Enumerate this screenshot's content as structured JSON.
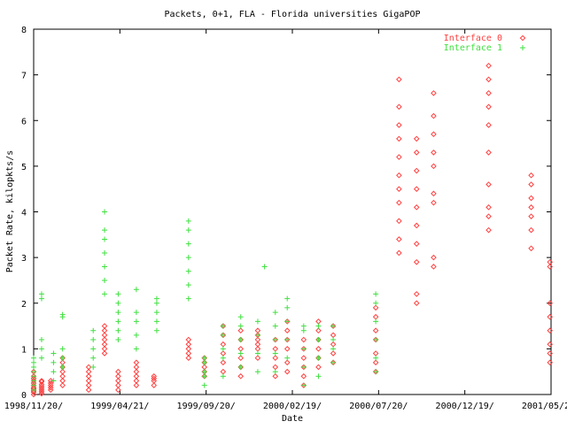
{
  "chart_data": {
    "type": "scatter",
    "title": "Packets, 0+1, FLA - Florida universities GigaPOP",
    "xlabel": "Date",
    "ylabel": "Packet Rate, kilopkts/s",
    "ylim": [
      0,
      8
    ],
    "xlim": [
      "1998-11-20",
      "2001-05-20"
    ],
    "x_ticks": [
      "1998/11/20/",
      "1999/04/21/",
      "1999/09/20/",
      "2000/02/19/",
      "2000/07/20/",
      "2000/12/19/",
      "2001/05/20/"
    ],
    "y_ticks": [
      "0",
      "1",
      "2",
      "3",
      "4",
      "5",
      "6",
      "7",
      "8"
    ],
    "grid": false,
    "legend_position": "top-right",
    "series": [
      {
        "name": "Interface 0",
        "marker": "diamond",
        "color": "#ff4040",
        "clusters": [
          {
            "date": "1998-11-20",
            "values": [
              0.0,
              0.05,
              0.08,
              0.12,
              0.15,
              0.2,
              0.25,
              0.3,
              0.35,
              0.4,
              0.5
            ]
          },
          {
            "date": "1998-12-04",
            "values": [
              0.02,
              0.06,
              0.1,
              0.14,
              0.18,
              0.22,
              0.28,
              0.3
            ]
          },
          {
            "date": "1998-12-20",
            "values": [
              0.1,
              0.15,
              0.2,
              0.25,
              0.3
            ]
          },
          {
            "date": "1999-01-10",
            "values": [
              0.2,
              0.3,
              0.4,
              0.5,
              0.6,
              0.7,
              0.8
            ]
          },
          {
            "date": "1999-02-25",
            "values": [
              0.1,
              0.2,
              0.3,
              0.4,
              0.5,
              0.6
            ]
          },
          {
            "date": "1999-03-25",
            "values": [
              0.9,
              1.0,
              1.1,
              1.2,
              1.3,
              1.4,
              1.5
            ]
          },
          {
            "date": "1999-04-18",
            "values": [
              0.1,
              0.2,
              0.3,
              0.4,
              0.5
            ]
          },
          {
            "date": "1999-05-20",
            "values": [
              0.2,
              0.3,
              0.4,
              0.5,
              0.6,
              0.7
            ]
          },
          {
            "date": "1999-06-20",
            "values": [
              0.2,
              0.3,
              0.35,
              0.4
            ]
          },
          {
            "date": "1999-08-20",
            "values": [
              0.8,
              0.9,
              1.0,
              1.1,
              1.2
            ]
          },
          {
            "date": "1999-09-17",
            "values": [
              0.4,
              0.5,
              0.6,
              0.7,
              0.8
            ]
          },
          {
            "date": "1999-10-20",
            "values": [
              0.5,
              0.7,
              0.9,
              1.1,
              1.3,
              1.5
            ]
          },
          {
            "date": "1999-11-20",
            "values": [
              0.4,
              0.6,
              0.8,
              1.0,
              1.2,
              1.4
            ]
          },
          {
            "date": "1999-12-20",
            "values": [
              0.8,
              1.0,
              1.1,
              1.2,
              1.3,
              1.4
            ]
          },
          {
            "date": "2000-01-20",
            "values": [
              0.4,
              0.6,
              0.8,
              1.0,
              1.2
            ]
          },
          {
            "date": "2000-02-10",
            "values": [
              0.5,
              0.7,
              1.0,
              1.2,
              1.4,
              1.6
            ]
          },
          {
            "date": "2000-03-10",
            "values": [
              0.2,
              0.4,
              0.6,
              0.8,
              1.0,
              1.2
            ]
          },
          {
            "date": "2000-04-05",
            "values": [
              0.6,
              0.8,
              1.0,
              1.2,
              1.4,
              1.6
            ]
          },
          {
            "date": "2000-05-01",
            "values": [
              0.7,
              0.9,
              1.1,
              1.3,
              1.5
            ]
          },
          {
            "date": "2000-07-15",
            "values": [
              0.5,
              0.7,
              0.9,
              1.2,
              1.4,
              1.7,
              1.9
            ]
          },
          {
            "date": "2000-08-25",
            "values": [
              3.1,
              3.4,
              3.8,
              4.2,
              4.5,
              4.8,
              5.2,
              5.6,
              5.9,
              6.3,
              6.9
            ]
          },
          {
            "date": "2000-09-25",
            "values": [
              2.0,
              2.2,
              2.9,
              3.3,
              3.7,
              4.1,
              4.5,
              4.9,
              5.3,
              5.6
            ]
          },
          {
            "date": "2000-10-25",
            "values": [
              2.8,
              3.0,
              4.2,
              4.4,
              5.0,
              5.3,
              5.7,
              6.1,
              6.6
            ]
          },
          {
            "date": "2001-01-30",
            "values": [
              3.6,
              3.9,
              4.1,
              4.6,
              5.3,
              5.9,
              6.3,
              6.6,
              6.9,
              7.2
            ]
          },
          {
            "date": "2001-04-15",
            "values": [
              3.2,
              3.6,
              3.9,
              4.1,
              4.3,
              4.6,
              4.8
            ]
          },
          {
            "date": "2001-05-18",
            "values": [
              0.7,
              0.9,
              1.1,
              1.4,
              1.7,
              2.0,
              2.8,
              2.9
            ]
          }
        ]
      },
      {
        "name": "Interface 1",
        "marker": "plus",
        "color": "#40e040",
        "clusters": [
          {
            "date": "1998-11-20",
            "values": [
              0.1,
              0.2,
              0.3,
              0.4,
              0.5,
              0.6,
              0.7,
              0.8
            ]
          },
          {
            "date": "1998-12-04",
            "values": [
              0.8,
              1.0,
              1.2,
              2.1,
              2.2
            ]
          },
          {
            "date": "1998-12-25",
            "values": [
              0.3,
              0.5,
              0.7,
              0.9
            ]
          },
          {
            "date": "1999-01-10",
            "values": [
              0.6,
              0.8,
              1.0,
              1.7,
              1.75
            ]
          },
          {
            "date": "1999-03-05",
            "values": [
              0.6,
              0.8,
              1.0,
              1.2,
              1.4
            ]
          },
          {
            "date": "1999-03-25",
            "values": [
              2.2,
              2.5,
              2.8,
              3.1,
              3.4,
              3.6,
              4.0
            ]
          },
          {
            "date": "1999-04-18",
            "values": [
              1.2,
              1.4,
              1.6,
              1.8,
              2.0,
              2.2
            ]
          },
          {
            "date": "1999-05-20",
            "values": [
              1.0,
              1.3,
              1.6,
              1.8,
              2.3
            ]
          },
          {
            "date": "1999-06-25",
            "values": [
              1.4,
              1.6,
              1.8,
              2.0,
              2.1
            ]
          },
          {
            "date": "1999-08-20",
            "values": [
              2.1,
              2.4,
              2.7,
              3.0,
              3.3,
              3.6,
              3.8
            ]
          },
          {
            "date": "1999-09-17",
            "values": [
              0.2,
              0.4,
              0.5,
              0.7,
              0.8
            ]
          },
          {
            "date": "1999-10-20",
            "values": [
              0.4,
              0.8,
              1.0,
              1.3,
              1.5
            ]
          },
          {
            "date": "1999-11-20",
            "values": [
              0.6,
              0.9,
              1.2,
              1.5,
              1.7
            ]
          },
          {
            "date": "1999-12-20",
            "values": [
              0.5,
              0.9,
              1.3,
              1.6
            ]
          },
          {
            "date": "2000-01-01",
            "values": [
              2.8
            ]
          },
          {
            "date": "2000-01-20",
            "values": [
              0.5,
              0.9,
              1.2,
              1.5,
              1.8
            ]
          },
          {
            "date": "2000-02-10",
            "values": [
              0.8,
              1.2,
              1.6,
              1.9,
              2.1
            ]
          },
          {
            "date": "2000-03-10",
            "values": [
              0.2,
              0.6,
              1.0,
              1.4,
              1.5
            ]
          },
          {
            "date": "2000-04-05",
            "values": [
              0.4,
              0.8,
              1.2,
              1.5
            ]
          },
          {
            "date": "2000-05-01",
            "values": [
              0.7,
              1.0,
              1.2,
              1.5
            ]
          },
          {
            "date": "2000-07-15",
            "values": [
              0.5,
              0.8,
              1.2,
              1.6,
              2.0,
              2.2
            ]
          }
        ]
      }
    ]
  }
}
